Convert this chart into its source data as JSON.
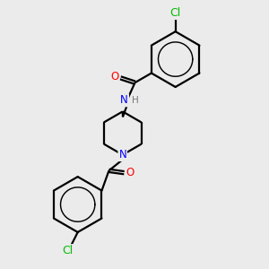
{
  "bg_color": "#ebebeb",
  "bond_color": "#000000",
  "bond_width": 1.6,
  "atom_colors": {
    "N": "#0000ff",
    "O": "#ff0000",
    "Cl": "#00bb00",
    "H": "#777777"
  },
  "font_size": 8.5,
  "figsize": [
    3.0,
    3.0
  ],
  "dpi": 100
}
